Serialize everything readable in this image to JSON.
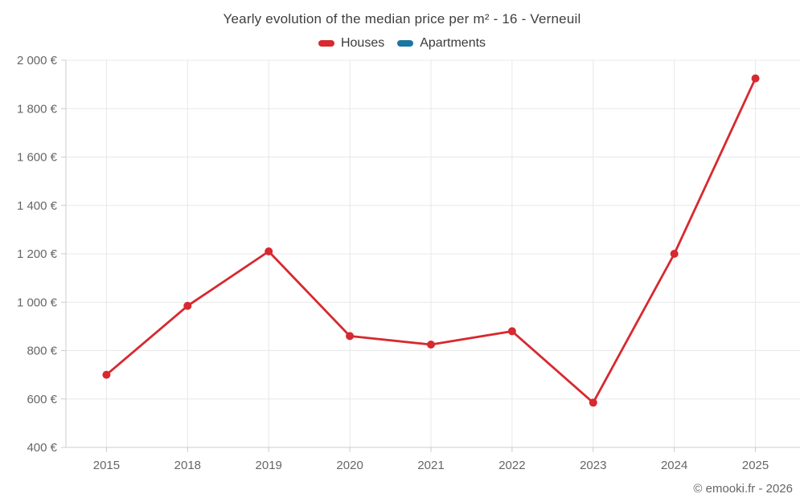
{
  "title": "Yearly evolution of the median price per m² - 16 - Verneuil",
  "legend": {
    "items": [
      {
        "label": "Houses",
        "color": "#d7292f"
      },
      {
        "label": "Apartments",
        "color": "#1a76a2"
      }
    ]
  },
  "footer": {
    "text": "© emooki.fr - 2026"
  },
  "colors": {
    "houses_series": "#d7292f",
    "apartments_series": "#1a76a2",
    "axis_line": "#cccccc",
    "gridline": "#e8e8e8",
    "axis_label": "#666666",
    "title_text": "#3f3f3f",
    "background": "#ffffff"
  },
  "chart_data": {
    "type": "line",
    "title": "Yearly evolution of the median price per m² - 16 - Verneuil",
    "categories": [
      "2015",
      "2018",
      "2019",
      "2020",
      "2021",
      "2022",
      "2023",
      "2024",
      "2025"
    ],
    "series": [
      {
        "name": "Houses",
        "color": "#d7292f",
        "values": [
          700,
          985,
          1210,
          860,
          825,
          880,
          585,
          1200,
          1925
        ]
      },
      {
        "name": "Apartments",
        "color": "#1a76a2",
        "values": []
      }
    ],
    "xlabel": "",
    "ylabel": "",
    "ylim": [
      400,
      2000
    ],
    "ytick_step": 200,
    "ytick_labels": [
      "400 €",
      "600 €",
      "800 €",
      "1 000 €",
      "1 200 €",
      "1 400 €",
      "1 600 €",
      "1 800 €",
      "2 000 €"
    ],
    "ytick_suffix": " €",
    "grid": true,
    "legend_position": "top",
    "markers": true
  }
}
